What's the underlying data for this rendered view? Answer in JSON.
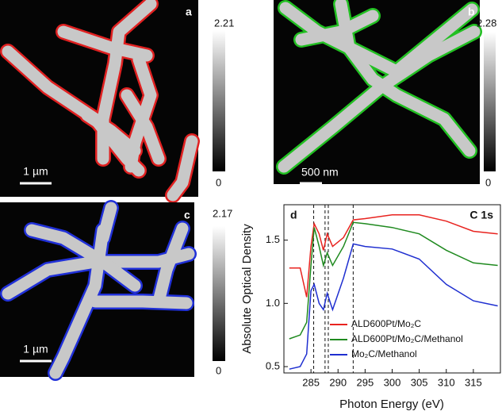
{
  "panels": [
    {
      "label": "a",
      "colorbar": {
        "max": 2.21,
        "min": 0
      },
      "scale_bar": "1 µm"
    },
    {
      "label": "b",
      "colorbar": {
        "max": 2.28,
        "min": 0
      },
      "scale_bar": "500 nm"
    },
    {
      "label": "c",
      "colorbar": {
        "max": 2.17,
        "min": 0
      },
      "scale_bar": "1 µm"
    }
  ],
  "chart_data": {
    "type": "line",
    "label": "d",
    "annotation": "C 1s",
    "x_label": "Photon Energy (eV)",
    "y_label": "Absolute Optical Density",
    "x": [
      281,
      283,
      284.2,
      285,
      285.6,
      286.5,
      287.3,
      288,
      289,
      291,
      292.8,
      295,
      300,
      305,
      310,
      315,
      319.5
    ],
    "series": [
      {
        "name": "ALD600Pt/Mo₂C",
        "color": "#e8231f",
        "values": [
          1.28,
          1.28,
          1.05,
          1.45,
          1.63,
          1.55,
          1.42,
          1.55,
          1.45,
          1.52,
          1.66,
          1.67,
          1.7,
          1.7,
          1.65,
          1.57,
          1.55
        ]
      },
      {
        "name": "ALD600Pt/Mo₂C/Methanol",
        "color": "#1f8a1f",
        "values": [
          0.72,
          0.75,
          0.85,
          1.3,
          1.6,
          1.45,
          1.3,
          1.4,
          1.3,
          1.45,
          1.64,
          1.63,
          1.6,
          1.55,
          1.42,
          1.32,
          1.3
        ]
      },
      {
        "name": "Mo₂C/Methanol",
        "color": "#1f2fd0",
        "values": [
          0.48,
          0.5,
          0.6,
          1.1,
          1.15,
          1.0,
          0.95,
          1.08,
          0.95,
          1.2,
          1.47,
          1.45,
          1.43,
          1.35,
          1.15,
          1.02,
          0.98
        ]
      }
    ],
    "vlines": [
      285.5,
      287.6,
      288.2,
      292.8
    ],
    "xlim": [
      280,
      320
    ],
    "ylim": [
      0.45,
      1.78
    ],
    "xticks": [
      285,
      290,
      295,
      300,
      305,
      310,
      315
    ],
    "yticks": [
      0.5,
      {
        "value": 1,
        "label": "1.0"
      },
      1.5
    ],
    "legend": "lower center"
  }
}
